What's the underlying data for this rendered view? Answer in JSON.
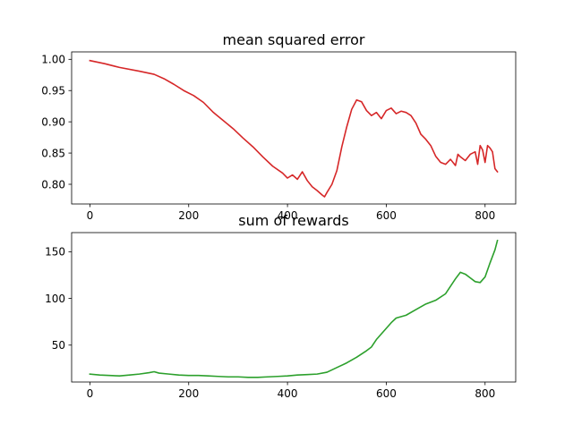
{
  "chart_data": [
    {
      "type": "line",
      "title": "mean squared error",
      "xlabel": "",
      "ylabel": "",
      "xlim": [
        -37,
        862
      ],
      "ylim": [
        0.7685,
        1.0119
      ],
      "xticks": [
        0,
        200,
        400,
        600,
        800
      ],
      "xtick_labels": [
        "0",
        "200",
        "400",
        "600",
        "800"
      ],
      "yticks": [
        0.8,
        0.85,
        0.9,
        0.95,
        1.0
      ],
      "ytick_labels": [
        "0.80",
        "0.85",
        "0.90",
        "0.95",
        "1.00"
      ],
      "grid": false,
      "series": [
        {
          "color": "#d62728",
          "x": [
            0,
            30,
            60,
            100,
            130,
            150,
            170,
            190,
            210,
            230,
            250,
            270,
            290,
            310,
            330,
            350,
            370,
            390,
            400,
            410,
            420,
            430,
            440,
            450,
            460,
            470,
            475,
            480,
            490,
            500,
            510,
            520,
            530,
            540,
            550,
            560,
            570,
            580,
            590,
            600,
            610,
            620,
            630,
            640,
            650,
            660,
            670,
            680,
            690,
            700,
            710,
            720,
            730,
            740,
            745,
            750,
            760,
            770,
            780,
            785,
            790,
            795,
            800,
            805,
            810,
            815,
            820,
            825
          ],
          "y": [
            0.998,
            0.993,
            0.987,
            0.981,
            0.976,
            0.969,
            0.96,
            0.95,
            0.942,
            0.931,
            0.915,
            0.902,
            0.889,
            0.874,
            0.86,
            0.844,
            0.829,
            0.818,
            0.81,
            0.815,
            0.808,
            0.82,
            0.806,
            0.796,
            0.79,
            0.783,
            0.78,
            0.787,
            0.8,
            0.822,
            0.86,
            0.892,
            0.92,
            0.935,
            0.932,
            0.918,
            0.91,
            0.915,
            0.905,
            0.918,
            0.922,
            0.913,
            0.917,
            0.915,
            0.91,
            0.898,
            0.88,
            0.872,
            0.862,
            0.845,
            0.835,
            0.832,
            0.84,
            0.83,
            0.848,
            0.844,
            0.838,
            0.848,
            0.852,
            0.832,
            0.862,
            0.855,
            0.835,
            0.862,
            0.858,
            0.852,
            0.825,
            0.82
          ]
        }
      ]
    },
    {
      "type": "line",
      "title": "sum of rewards",
      "xlabel": "",
      "ylabel": "",
      "xlim": [
        -37,
        862
      ],
      "ylim": [
        10.5,
        170.5
      ],
      "xticks": [
        0,
        200,
        400,
        600,
        800
      ],
      "xtick_labels": [
        "0",
        "200",
        "400",
        "600",
        "800"
      ],
      "yticks": [
        50,
        100,
        150
      ],
      "ytick_labels": [
        "50",
        "100",
        "150"
      ],
      "grid": false,
      "series": [
        {
          "color": "#2ca02c",
          "x": [
            0,
            20,
            40,
            60,
            80,
            100,
            120,
            130,
            140,
            160,
            180,
            200,
            220,
            240,
            260,
            280,
            300,
            320,
            340,
            360,
            380,
            400,
            420,
            440,
            460,
            480,
            500,
            520,
            540,
            560,
            570,
            580,
            600,
            610,
            620,
            640,
            660,
            680,
            700,
            720,
            740,
            750,
            760,
            770,
            780,
            790,
            800,
            810,
            820,
            825
          ],
          "y": [
            19.0,
            18.0,
            17.5,
            17.0,
            18.0,
            19.0,
            20.5,
            21.5,
            20.0,
            19.0,
            18.0,
            17.5,
            17.5,
            17.0,
            16.5,
            16.0,
            16.0,
            15.5,
            15.5,
            16.0,
            16.5,
            17.0,
            18.0,
            18.5,
            19.0,
            21.0,
            26.0,
            31.0,
            37.0,
            44.0,
            48.0,
            56.0,
            68.0,
            74.0,
            79.0,
            82.0,
            88.0,
            94.0,
            98.0,
            105.0,
            121.0,
            128.0,
            126.0,
            122.0,
            118.0,
            117.0,
            123.0,
            138.0,
            152.0,
            162.0
          ]
        }
      ]
    }
  ]
}
